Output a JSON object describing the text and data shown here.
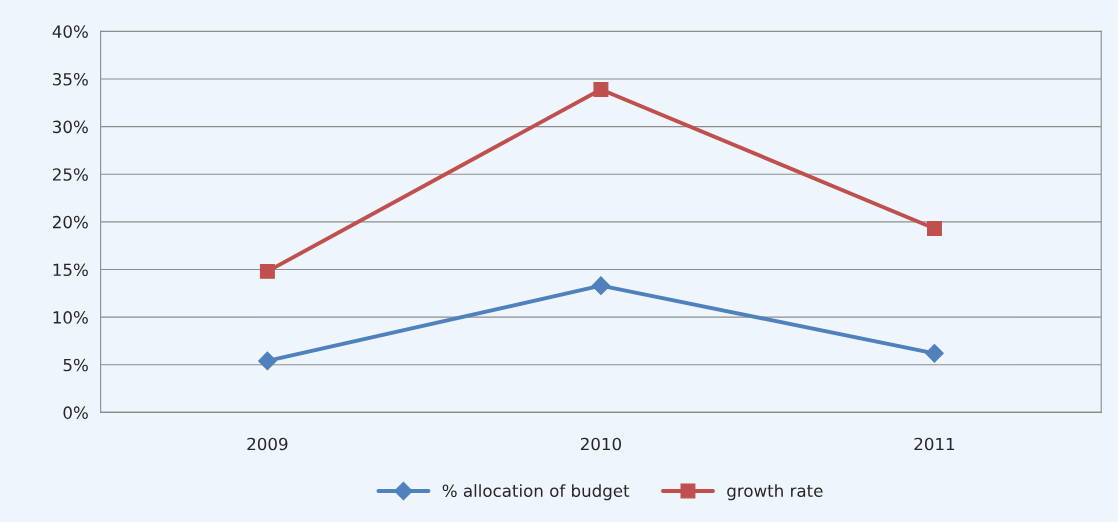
{
  "chart_data": {
    "type": "line",
    "categories": [
      "2009",
      "2010",
      "2011"
    ],
    "series": [
      {
        "name": "% allocation of budget",
        "color": "#4f81bd",
        "values": [
          5.4,
          13.3,
          6.2
        ],
        "marker": "diamond"
      },
      {
        "name": "growth rate",
        "color": "#c0504d",
        "values": [
          14.8,
          33.9,
          19.3
        ],
        "marker": "square"
      }
    ],
    "ylim": [
      0,
      40
    ],
    "yticks": [
      {
        "value": 0,
        "label": "0%"
      },
      {
        "value": 5,
        "label": "5%"
      },
      {
        "value": 10,
        "label": "10%"
      },
      {
        "value": 15,
        "label": "15%"
      },
      {
        "value": 20,
        "label": "20%"
      },
      {
        "value": 25,
        "label": "25%"
      },
      {
        "value": 30,
        "label": "30%"
      },
      {
        "value": 35,
        "label": "35%"
      },
      {
        "value": 40,
        "label": "40%"
      }
    ],
    "grid": "y",
    "legend": "bottom",
    "line_style": "solid"
  }
}
